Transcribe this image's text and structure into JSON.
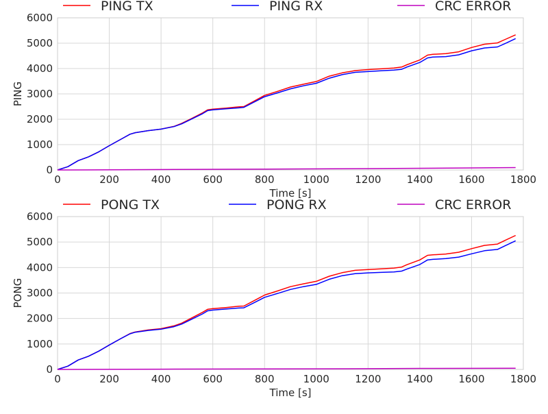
{
  "chart_data": [
    {
      "type": "line",
      "xlabel": "Time [s]",
      "ylabel": "PING",
      "xlim": [
        0,
        1800
      ],
      "ylim": [
        0,
        6000
      ],
      "xticks": [
        0,
        200,
        400,
        600,
        800,
        1000,
        1200,
        1400,
        1600,
        1800
      ],
      "yticks": [
        0,
        1000,
        2000,
        3000,
        4000,
        5000,
        6000
      ],
      "grid": true,
      "legend": "top",
      "series": [
        {
          "name": "PING TX",
          "color": "#ff0000",
          "points": [
            [
              0,
              0
            ],
            [
              40,
              130
            ],
            [
              80,
              370
            ],
            [
              120,
              520
            ],
            [
              160,
              720
            ],
            [
              200,
              960
            ],
            [
              250,
              1240
            ],
            [
              280,
              1410
            ],
            [
              300,
              1470
            ],
            [
              350,
              1550
            ],
            [
              400,
              1610
            ],
            [
              450,
              1720
            ],
            [
              480,
              1840
            ],
            [
              520,
              2040
            ],
            [
              560,
              2250
            ],
            [
              580,
              2370
            ],
            [
              600,
              2400
            ],
            [
              650,
              2440
            ],
            [
              700,
              2490
            ],
            [
              720,
              2500
            ],
            [
              760,
              2720
            ],
            [
              800,
              2940
            ],
            [
              850,
              3100
            ],
            [
              900,
              3270
            ],
            [
              950,
              3380
            ],
            [
              1000,
              3490
            ],
            [
              1050,
              3700
            ],
            [
              1100,
              3830
            ],
            [
              1150,
              3920
            ],
            [
              1200,
              3960
            ],
            [
              1250,
              3990
            ],
            [
              1300,
              4020
            ],
            [
              1330,
              4060
            ],
            [
              1350,
              4150
            ],
            [
              1400,
              4340
            ],
            [
              1430,
              4530
            ],
            [
              1450,
              4560
            ],
            [
              1500,
              4590
            ],
            [
              1550,
              4660
            ],
            [
              1600,
              4830
            ],
            [
              1650,
              4960
            ],
            [
              1700,
              5010
            ],
            [
              1730,
              5150
            ],
            [
              1770,
              5330
            ]
          ]
        },
        {
          "name": "PING RX",
          "color": "#0000ff",
          "points": [
            [
              0,
              0
            ],
            [
              40,
              130
            ],
            [
              80,
              370
            ],
            [
              120,
              520
            ],
            [
              160,
              720
            ],
            [
              200,
              960
            ],
            [
              250,
              1240
            ],
            [
              280,
              1410
            ],
            [
              300,
              1470
            ],
            [
              350,
              1550
            ],
            [
              400,
              1610
            ],
            [
              450,
              1710
            ],
            [
              480,
              1820
            ],
            [
              520,
              2020
            ],
            [
              560,
              2220
            ],
            [
              580,
              2340
            ],
            [
              600,
              2370
            ],
            [
              650,
              2410
            ],
            [
              700,
              2450
            ],
            [
              720,
              2470
            ],
            [
              760,
              2680
            ],
            [
              800,
              2890
            ],
            [
              850,
              3040
            ],
            [
              900,
              3200
            ],
            [
              950,
              3320
            ],
            [
              1000,
              3420
            ],
            [
              1050,
              3620
            ],
            [
              1100,
              3760
            ],
            [
              1150,
              3850
            ],
            [
              1200,
              3880
            ],
            [
              1250,
              3910
            ],
            [
              1300,
              3940
            ],
            [
              1330,
              3970
            ],
            [
              1350,
              4060
            ],
            [
              1400,
              4240
            ],
            [
              1430,
              4420
            ],
            [
              1450,
              4450
            ],
            [
              1500,
              4470
            ],
            [
              1550,
              4540
            ],
            [
              1600,
              4700
            ],
            [
              1650,
              4810
            ],
            [
              1700,
              4850
            ],
            [
              1730,
              4990
            ],
            [
              1770,
              5180
            ]
          ]
        },
        {
          "name": "CRC ERROR",
          "color": "#bf00bf",
          "points": [
            [
              0,
              0
            ],
            [
              400,
              15
            ],
            [
              800,
              35
            ],
            [
              1200,
              55
            ],
            [
              1600,
              80
            ],
            [
              1770,
              95
            ]
          ]
        }
      ]
    },
    {
      "type": "line",
      "xlabel": "Time [s]",
      "ylabel": "PONG",
      "xlim": [
        0,
        1800
      ],
      "ylim": [
        0,
        6000
      ],
      "xticks": [
        0,
        200,
        400,
        600,
        800,
        1000,
        1200,
        1400,
        1600,
        1800
      ],
      "yticks": [
        0,
        1000,
        2000,
        3000,
        4000,
        5000,
        6000
      ],
      "grid": true,
      "legend": "top",
      "series": [
        {
          "name": "PONG TX",
          "color": "#ff0000",
          "points": [
            [
              0,
              0
            ],
            [
              40,
              130
            ],
            [
              80,
              370
            ],
            [
              120,
              520
            ],
            [
              160,
              720
            ],
            [
              200,
              960
            ],
            [
              250,
              1240
            ],
            [
              280,
              1410
            ],
            [
              300,
              1470
            ],
            [
              350,
              1550
            ],
            [
              400,
              1600
            ],
            [
              450,
              1710
            ],
            [
              480,
              1820
            ],
            [
              520,
              2030
            ],
            [
              560,
              2240
            ],
            [
              580,
              2360
            ],
            [
              600,
              2390
            ],
            [
              650,
              2430
            ],
            [
              700,
              2480
            ],
            [
              720,
              2490
            ],
            [
              760,
              2700
            ],
            [
              800,
              2920
            ],
            [
              850,
              3080
            ],
            [
              900,
              3250
            ],
            [
              950,
              3360
            ],
            [
              1000,
              3460
            ],
            [
              1050,
              3660
            ],
            [
              1100,
              3800
            ],
            [
              1150,
              3890
            ],
            [
              1200,
              3920
            ],
            [
              1250,
              3950
            ],
            [
              1300,
              3980
            ],
            [
              1330,
              4020
            ],
            [
              1350,
              4110
            ],
            [
              1400,
              4300
            ],
            [
              1430,
              4480
            ],
            [
              1450,
              4500
            ],
            [
              1500,
              4530
            ],
            [
              1550,
              4600
            ],
            [
              1600,
              4740
            ],
            [
              1650,
              4870
            ],
            [
              1700,
              4920
            ],
            [
              1730,
              5070
            ],
            [
              1770,
              5260
            ]
          ]
        },
        {
          "name": "PONG RX",
          "color": "#0000ff",
          "points": [
            [
              0,
              0
            ],
            [
              40,
              130
            ],
            [
              80,
              370
            ],
            [
              120,
              520
            ],
            [
              160,
              720
            ],
            [
              200,
              960
            ],
            [
              250,
              1240
            ],
            [
              280,
              1400
            ],
            [
              300,
              1460
            ],
            [
              350,
              1530
            ],
            [
              400,
              1580
            ],
            [
              450,
              1680
            ],
            [
              480,
              1780
            ],
            [
              520,
              1980
            ],
            [
              560,
              2180
            ],
            [
              580,
              2300
            ],
            [
              600,
              2330
            ],
            [
              650,
              2370
            ],
            [
              700,
              2410
            ],
            [
              720,
              2420
            ],
            [
              760,
              2620
            ],
            [
              800,
              2830
            ],
            [
              850,
              2980
            ],
            [
              900,
              3140
            ],
            [
              950,
              3250
            ],
            [
              1000,
              3340
            ],
            [
              1050,
              3540
            ],
            [
              1100,
              3680
            ],
            [
              1150,
              3760
            ],
            [
              1200,
              3790
            ],
            [
              1250,
              3810
            ],
            [
              1300,
              3830
            ],
            [
              1330,
              3860
            ],
            [
              1350,
              3940
            ],
            [
              1400,
              4120
            ],
            [
              1430,
              4300
            ],
            [
              1450,
              4320
            ],
            [
              1500,
              4350
            ],
            [
              1550,
              4410
            ],
            [
              1600,
              4540
            ],
            [
              1650,
              4660
            ],
            [
              1700,
              4710
            ],
            [
              1730,
              4860
            ],
            [
              1770,
              5050
            ]
          ]
        },
        {
          "name": "CRC ERROR",
          "color": "#bf00bf",
          "points": [
            [
              0,
              0
            ],
            [
              400,
              10
            ],
            [
              800,
              20
            ],
            [
              1200,
              30
            ],
            [
              1400,
              40
            ],
            [
              1770,
              45
            ]
          ]
        }
      ]
    }
  ]
}
